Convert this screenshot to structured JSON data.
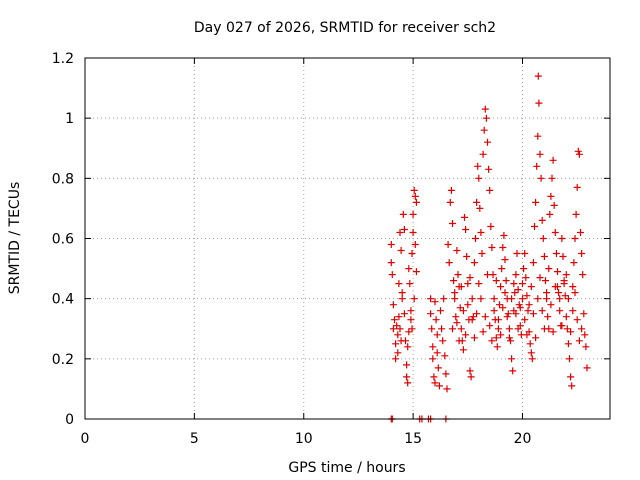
{
  "chart_data": {
    "type": "scatter",
    "title": "Day 027 of 2026, SRMTID for receiver sch2",
    "xlabel": "GPS time / hours",
    "ylabel": "SRMTID / TECUs",
    "xlim": [
      0,
      24
    ],
    "ylim": [
      0,
      1.2
    ],
    "grid": true,
    "x_ticks": [
      0,
      5,
      10,
      15,
      20
    ],
    "x_tick_labels": [
      "0",
      "5",
      "10",
      "15",
      "20"
    ],
    "y_ticks": [
      0,
      0.2,
      0.4,
      0.6,
      0.8,
      1.0,
      1.2
    ],
    "y_tick_labels": [
      "0",
      "0.2",
      "0.4",
      "0.6",
      "0.8",
      "1",
      "1.2"
    ],
    "marker": "+",
    "series": [
      {
        "name": "SRMTID",
        "color": "#e00000",
        "points": [
          [
            14.0,
            0.0
          ],
          [
            14.05,
            0.0
          ],
          [
            15.3,
            0.0
          ],
          [
            15.4,
            0.0
          ],
          [
            15.7,
            0.0
          ],
          [
            15.8,
            0.0
          ],
          [
            16.5,
            0.0
          ],
          [
            14.0,
            0.58
          ],
          [
            14.0,
            0.52
          ],
          [
            14.05,
            0.48
          ],
          [
            14.1,
            0.38
          ],
          [
            14.1,
            0.3
          ],
          [
            14.15,
            0.33
          ],
          [
            14.2,
            0.25
          ],
          [
            14.2,
            0.2
          ],
          [
            14.25,
            0.31
          ],
          [
            14.3,
            0.28
          ],
          [
            14.3,
            0.22
          ],
          [
            14.35,
            0.34
          ],
          [
            14.4,
            0.3
          ],
          [
            14.4,
            0.62
          ],
          [
            14.45,
            0.56
          ],
          [
            14.5,
            0.42
          ],
          [
            14.5,
            0.4
          ],
          [
            14.55,
            0.68
          ],
          [
            14.6,
            0.63
          ],
          [
            14.6,
            0.35
          ],
          [
            14.65,
            0.26
          ],
          [
            14.7,
            0.18
          ],
          [
            14.7,
            0.14
          ],
          [
            14.75,
            0.24
          ],
          [
            14.8,
            0.29
          ],
          [
            14.8,
            0.5
          ],
          [
            14.85,
            0.45
          ],
          [
            14.9,
            0.36
          ],
          [
            14.9,
            0.33
          ],
          [
            14.95,
            0.55
          ],
          [
            15.0,
            0.68
          ],
          [
            15.0,
            0.62
          ],
          [
            15.05,
            0.76
          ],
          [
            15.1,
            0.74
          ],
          [
            15.1,
            0.58
          ],
          [
            15.15,
            0.49
          ],
          [
            15.15,
            0.72
          ],
          [
            14.35,
            0.45
          ],
          [
            14.45,
            0.26
          ],
          [
            14.75,
            0.12
          ],
          [
            14.95,
            0.3
          ],
          [
            15.05,
            0.4
          ],
          [
            15.8,
            0.4
          ],
          [
            15.8,
            0.35
          ],
          [
            15.85,
            0.3
          ],
          [
            15.9,
            0.24
          ],
          [
            15.9,
            0.2
          ],
          [
            15.95,
            0.14
          ],
          [
            16.0,
            0.12
          ],
          [
            16.0,
            0.39
          ],
          [
            16.05,
            0.33
          ],
          [
            16.1,
            0.28
          ],
          [
            16.1,
            0.22
          ],
          [
            16.15,
            0.17
          ],
          [
            16.2,
            0.11
          ],
          [
            16.25,
            0.36
          ],
          [
            16.3,
            0.3
          ],
          [
            16.35,
            0.26
          ],
          [
            16.4,
            0.4
          ],
          [
            16.45,
            0.21
          ],
          [
            16.5,
            0.15
          ],
          [
            16.55,
            0.1
          ],
          [
            16.6,
            0.58
          ],
          [
            16.65,
            0.52
          ],
          [
            16.7,
            0.72
          ],
          [
            16.75,
            0.76
          ],
          [
            16.8,
            0.65
          ],
          [
            16.85,
            0.46
          ],
          [
            16.9,
            0.4
          ],
          [
            16.95,
            0.34
          ],
          [
            17.0,
            0.56
          ],
          [
            17.05,
            0.48
          ],
          [
            17.1,
            0.44
          ],
          [
            17.15,
            0.37
          ],
          [
            17.2,
            0.3
          ],
          [
            17.25,
            0.26
          ],
          [
            17.3,
            0.23
          ],
          [
            17.35,
            0.67
          ],
          [
            17.4,
            0.63
          ],
          [
            17.45,
            0.54
          ],
          [
            17.5,
            0.45
          ],
          [
            17.55,
            0.33
          ],
          [
            17.6,
            0.16
          ],
          [
            17.65,
            0.14
          ],
          [
            17.7,
            0.4
          ],
          [
            17.75,
            0.34
          ],
          [
            17.8,
            0.52
          ],
          [
            17.85,
            0.6
          ],
          [
            17.9,
            0.72
          ],
          [
            17.95,
            0.84
          ],
          [
            18.0,
            0.8
          ],
          [
            18.05,
            0.7
          ],
          [
            18.1,
            0.62
          ],
          [
            18.15,
            0.55
          ],
          [
            18.2,
            0.88
          ],
          [
            18.25,
            0.96
          ],
          [
            18.3,
            1.03
          ],
          [
            18.35,
            1.0
          ],
          [
            18.4,
            0.92
          ],
          [
            18.45,
            0.83
          ],
          [
            18.5,
            0.76
          ],
          [
            18.55,
            0.64
          ],
          [
            18.6,
            0.57
          ],
          [
            18.65,
            0.48
          ],
          [
            18.7,
            0.4
          ],
          [
            18.75,
            0.33
          ],
          [
            18.8,
            0.27
          ],
          [
            18.85,
            0.24
          ],
          [
            18.9,
            0.3
          ],
          [
            18.95,
            0.38
          ],
          [
            19.0,
            0.44
          ],
          [
            19.05,
            0.5
          ],
          [
            19.1,
            0.57
          ],
          [
            19.15,
            0.61
          ],
          [
            19.2,
            0.53
          ],
          [
            19.25,
            0.46
          ],
          [
            19.3,
            0.4
          ],
          [
            19.35,
            0.35
          ],
          [
            19.4,
            0.3
          ],
          [
            19.45,
            0.26
          ],
          [
            19.5,
            0.2
          ],
          [
            19.55,
            0.16
          ],
          [
            19.6,
            0.36
          ],
          [
            19.65,
            0.42
          ],
          [
            19.7,
            0.48
          ],
          [
            19.75,
            0.55
          ],
          [
            19.8,
            0.43
          ],
          [
            19.85,
            0.38
          ],
          [
            19.9,
            0.31
          ],
          [
            19.95,
            0.28
          ],
          [
            20.0,
            0.45
          ],
          [
            20.05,
            0.5
          ],
          [
            20.1,
            0.55
          ],
          [
            20.15,
            0.47
          ],
          [
            20.2,
            0.41
          ],
          [
            20.25,
            0.36
          ],
          [
            20.3,
            0.29
          ],
          [
            20.35,
            0.25
          ],
          [
            20.4,
            0.22
          ],
          [
            20.45,
            0.2
          ],
          [
            20.5,
            0.52
          ],
          [
            20.55,
            0.64
          ],
          [
            20.6,
            0.72
          ],
          [
            20.65,
            0.84
          ],
          [
            20.7,
            0.94
          ],
          [
            20.72,
            1.14
          ],
          [
            20.75,
            1.05
          ],
          [
            20.8,
            0.88
          ],
          [
            20.85,
            0.8
          ],
          [
            20.9,
            0.66
          ],
          [
            20.95,
            0.6
          ],
          [
            21.0,
            0.54
          ],
          [
            21.05,
            0.46
          ],
          [
            21.1,
            0.4
          ],
          [
            21.15,
            0.34
          ],
          [
            21.2,
            0.3
          ],
          [
            21.25,
            0.68
          ],
          [
            21.3,
            0.74
          ],
          [
            21.35,
            0.8
          ],
          [
            21.4,
            0.86
          ],
          [
            21.45,
            0.71
          ],
          [
            21.5,
            0.62
          ],
          [
            21.55,
            0.55
          ],
          [
            21.6,
            0.49
          ],
          [
            21.65,
            0.42
          ],
          [
            21.7,
            0.36
          ],
          [
            21.75,
            0.31
          ],
          [
            21.8,
            0.6
          ],
          [
            21.85,
            0.54
          ],
          [
            21.9,
            0.46
          ],
          [
            21.95,
            0.41
          ],
          [
            22.0,
            0.34
          ],
          [
            22.05,
            0.3
          ],
          [
            22.1,
            0.25
          ],
          [
            22.15,
            0.2
          ],
          [
            22.2,
            0.14
          ],
          [
            22.25,
            0.11
          ],
          [
            22.3,
            0.44
          ],
          [
            22.35,
            0.52
          ],
          [
            22.4,
            0.6
          ],
          [
            22.45,
            0.68
          ],
          [
            22.5,
            0.77
          ],
          [
            22.55,
            0.89
          ],
          [
            22.6,
            0.88
          ],
          [
            22.65,
            0.62
          ],
          [
            22.7,
            0.55
          ],
          [
            22.75,
            0.48
          ],
          [
            22.8,
            0.35
          ],
          [
            22.85,
            0.28
          ],
          [
            22.9,
            0.24
          ],
          [
            22.95,
            0.17
          ],
          [
            16.8,
            0.3
          ],
          [
            17.0,
            0.32
          ],
          [
            17.3,
            0.36
          ],
          [
            17.5,
            0.38
          ],
          [
            17.7,
            0.33
          ],
          [
            17.9,
            0.35
          ],
          [
            18.1,
            0.4
          ],
          [
            18.3,
            0.34
          ],
          [
            18.5,
            0.31
          ],
          [
            18.7,
            0.36
          ],
          [
            18.9,
            0.33
          ],
          [
            19.1,
            0.37
          ],
          [
            19.3,
            0.34
          ],
          [
            19.5,
            0.4
          ],
          [
            19.7,
            0.35
          ],
          [
            19.9,
            0.37
          ],
          [
            20.1,
            0.33
          ],
          [
            20.3,
            0.38
          ],
          [
            20.5,
            0.35
          ],
          [
            20.7,
            0.4
          ],
          [
            20.9,
            0.36
          ],
          [
            21.1,
            0.42
          ],
          [
            21.3,
            0.38
          ],
          [
            21.5,
            0.44
          ],
          [
            21.7,
            0.4
          ],
          [
            21.9,
            0.45
          ],
          [
            22.1,
            0.4
          ],
          [
            22.3,
            0.36
          ],
          [
            22.5,
            0.33
          ],
          [
            22.7,
            0.3
          ],
          [
            16.9,
            0.42
          ],
          [
            17.2,
            0.44
          ],
          [
            17.6,
            0.47
          ],
          [
            18.0,
            0.45
          ],
          [
            18.4,
            0.48
          ],
          [
            18.8,
            0.46
          ],
          [
            19.2,
            0.42
          ],
          [
            19.6,
            0.45
          ],
          [
            20.0,
            0.4
          ],
          [
            20.4,
            0.44
          ],
          [
            20.8,
            0.47
          ],
          [
            21.2,
            0.5
          ],
          [
            21.6,
            0.44
          ],
          [
            22.0,
            0.48
          ],
          [
            22.4,
            0.42
          ],
          [
            17.1,
            0.26
          ],
          [
            17.4,
            0.28
          ],
          [
            17.8,
            0.27
          ],
          [
            18.2,
            0.29
          ],
          [
            18.6,
            0.26
          ],
          [
            19.0,
            0.28
          ],
          [
            19.4,
            0.27
          ],
          [
            19.8,
            0.3
          ],
          [
            20.2,
            0.28
          ],
          [
            20.6,
            0.27
          ],
          [
            21.0,
            0.3
          ],
          [
            21.4,
            0.29
          ],
          [
            21.8,
            0.31
          ],
          [
            22.2,
            0.29
          ],
          [
            22.6,
            0.26
          ]
        ]
      }
    ]
  }
}
